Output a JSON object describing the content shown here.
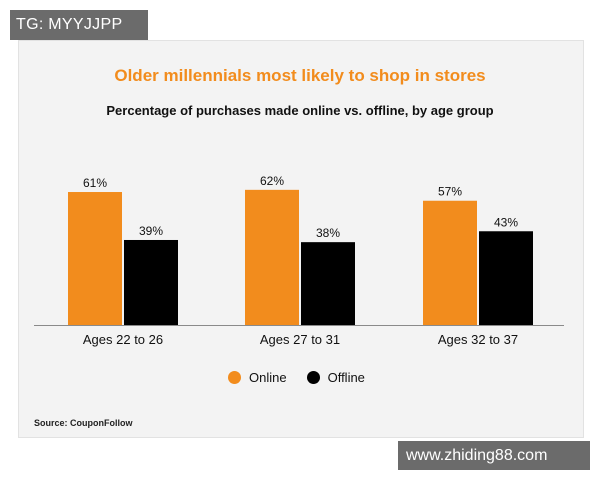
{
  "watermarks": {
    "top": "TG: MYYJJPP",
    "bottom": "www.zhiding88.com"
  },
  "source": "Source:  CouponFollow",
  "colors": {
    "online": "#f28c1d",
    "offline": "#000000",
    "title": "#f28c1d"
  },
  "chart_data": {
    "type": "bar",
    "title": "Older millennials most likely to shop in stores",
    "subtitle": "Percentage of purchases made online vs. offline, by age group",
    "categories": [
      "Ages 22 to 26",
      "Ages 27 to 31",
      "Ages 32 to 37"
    ],
    "series": [
      {
        "name": "Online",
        "values": [
          61,
          62,
          57
        ],
        "labels": [
          "61%",
          "62%",
          "57%"
        ]
      },
      {
        "name": "Offline",
        "values": [
          39,
          38,
          43
        ],
        "labels": [
          "39%",
          "38%",
          "43%"
        ]
      }
    ],
    "ylim": [
      0,
      100
    ],
    "grid": false,
    "legend": "bottom-center"
  }
}
